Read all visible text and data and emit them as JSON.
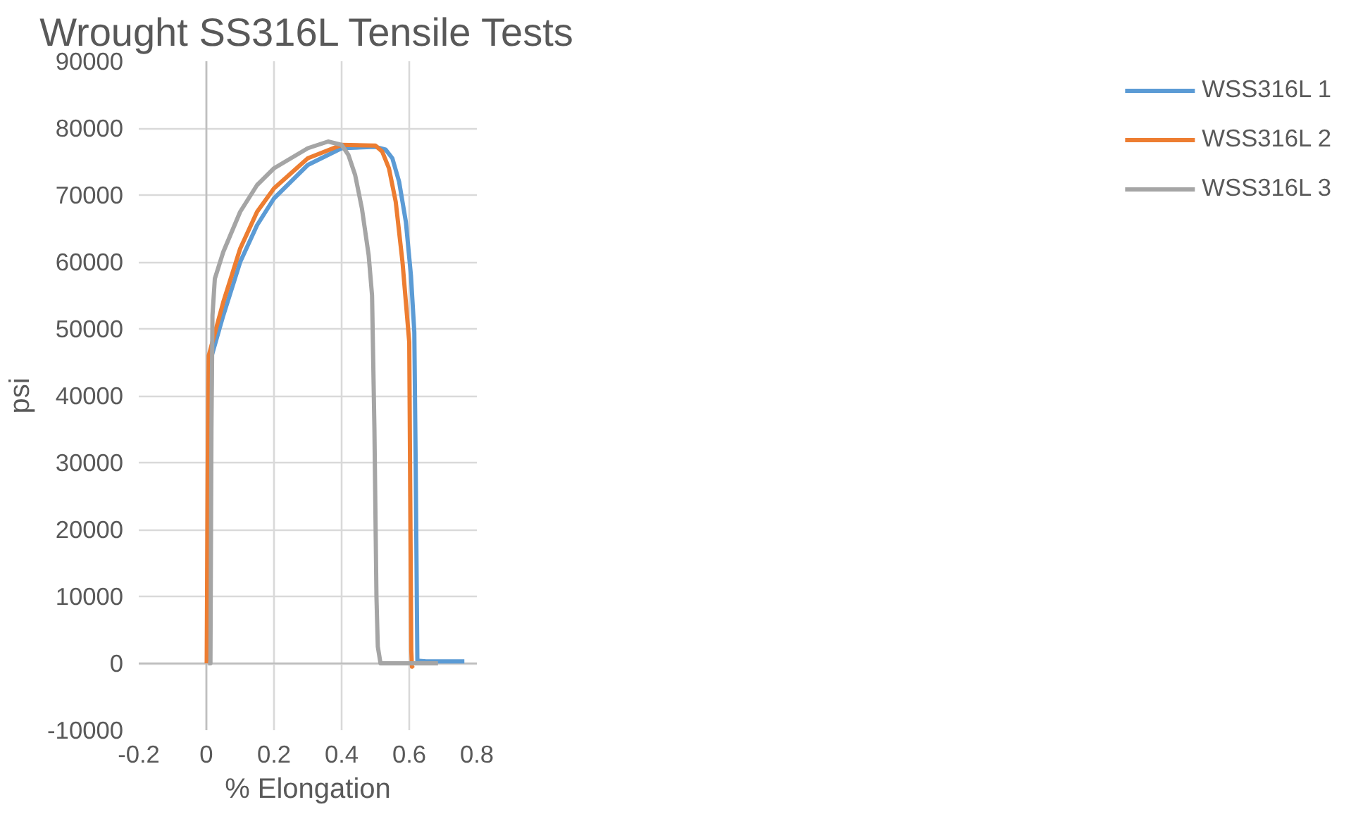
{
  "chart_data": {
    "type": "line",
    "title": "Wrought SS316L Tensile Tests",
    "xlabel": "% Elongation",
    "ylabel": "psi",
    "xlim": [
      -0.2,
      0.8
    ],
    "xticks": [
      -0.2,
      0,
      0.2,
      0.4,
      0.6,
      0.8
    ],
    "ylim": [
      -10000,
      90000
    ],
    "yticks": [
      -10000,
      0,
      10000,
      20000,
      30000,
      40000,
      50000,
      60000,
      70000,
      80000,
      90000
    ],
    "grid": true,
    "legend": "right",
    "marker": "none",
    "line_style": "solid",
    "series": [
      {
        "name": "WSS316L 1",
        "color": "#5b9bd5",
        "x": [
          0.008,
          0.012,
          0.016,
          0.05,
          0.1,
          0.15,
          0.2,
          0.3,
          0.4,
          0.5,
          0.53,
          0.55,
          0.57,
          0.59,
          0.605,
          0.615,
          0.619,
          0.624,
          0.65,
          0.763
        ],
        "values": [
          0,
          30000,
          46000,
          52000,
          60000,
          65500,
          69500,
          74500,
          77000,
          77200,
          76800,
          75500,
          72000,
          66000,
          58000,
          49500,
          30000,
          400,
          300,
          300
        ]
      },
      {
        "name": "WSS316L 2",
        "color": "#ed7d31",
        "x": [
          0.001,
          0.004,
          0.007,
          0.015,
          0.05,
          0.1,
          0.15,
          0.2,
          0.3,
          0.4,
          0.5,
          0.52,
          0.54,
          0.56,
          0.58,
          0.6,
          0.603,
          0.606,
          0.608,
          0.612
        ],
        "values": [
          0,
          30000,
          46000,
          47500,
          54000,
          62000,
          67500,
          71000,
          75500,
          77500,
          77400,
          76500,
          74000,
          69000,
          60000,
          48000,
          25000,
          2000,
          -500,
          -300
        ]
      },
      {
        "name": "WSS316L 3",
        "color": "#a5a5a5",
        "x": [
          0.005,
          0.012,
          0.015,
          0.018,
          0.025,
          0.05,
          0.1,
          0.15,
          0.2,
          0.3,
          0.36,
          0.4,
          0.42,
          0.44,
          0.46,
          0.48,
          0.49,
          0.497,
          0.503,
          0.507,
          0.515,
          0.55,
          0.685
        ],
        "values": [
          0,
          0,
          35000,
          52000,
          57500,
          61500,
          67500,
          71500,
          74000,
          77000,
          78000,
          77500,
          76000,
          73000,
          68000,
          61000,
          55000,
          35000,
          10000,
          2500,
          0,
          0,
          0
        ]
      }
    ]
  }
}
